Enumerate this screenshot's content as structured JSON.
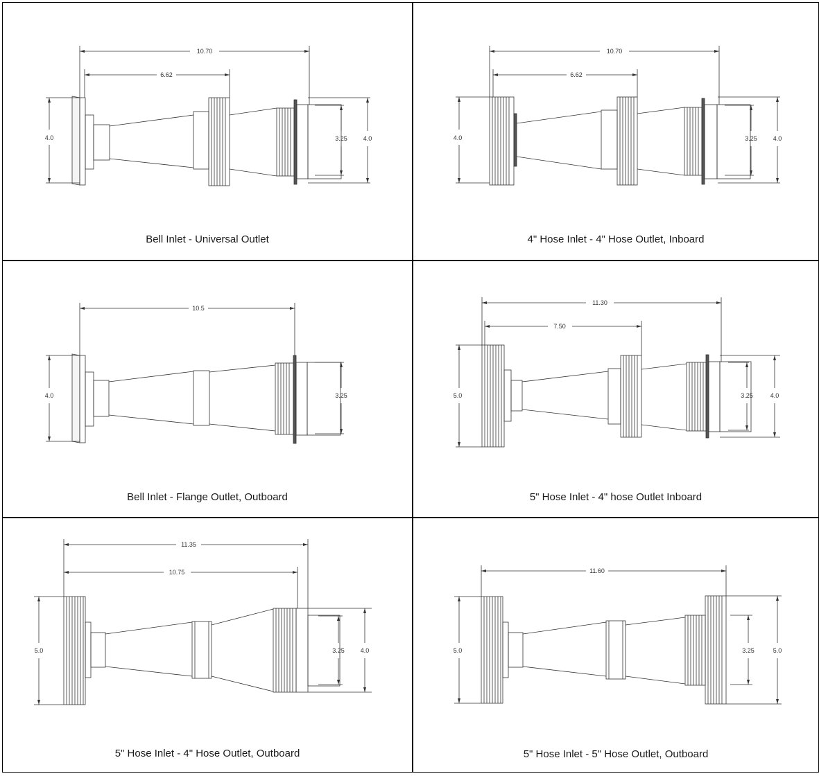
{
  "panels": [
    {
      "caption": "Bell Inlet - Universal Outlet",
      "dims": {
        "overall_length": "10.70",
        "inner_length": "6.62",
        "inlet_height": "4.0",
        "outlet_inner": "3.25",
        "outlet_height": "4.0"
      }
    },
    {
      "caption": "4\" Hose Inlet - 4\" Hose Outlet, Inboard",
      "dims": {
        "overall_length": "10.70",
        "inner_length": "6.62",
        "inlet_height": "4.0",
        "outlet_inner": "3.25",
        "outlet_height": "4.0"
      }
    },
    {
      "caption": "Bell Inlet - Flange Outlet, Outboard",
      "dims": {
        "overall_length": "10.5",
        "inlet_height": "4.0",
        "outlet_inner": "3.25"
      }
    },
    {
      "caption": "5\" Hose Inlet - 4\" hose Outlet Inboard",
      "dims": {
        "overall_length": "11.30",
        "inner_length": "7.50",
        "inlet_height": "5.0",
        "outlet_inner": "3.25",
        "outlet_height": "4.0"
      }
    },
    {
      "caption": "5\" Hose Inlet - 4\" Hose Outlet, Outboard",
      "dims": {
        "overall_length": "11.35",
        "inner_length": "10.75",
        "inlet_height": "5.0",
        "outlet_inner": "3.25",
        "outlet_height": "4.0"
      }
    },
    {
      "caption": "5\" Hose Inlet - 5\" Hose Outlet, Outboard",
      "dims": {
        "overall_length": "11.60",
        "inlet_height": "5.0",
        "outlet_inner": "3.25",
        "outlet_height": "5.0"
      }
    }
  ]
}
